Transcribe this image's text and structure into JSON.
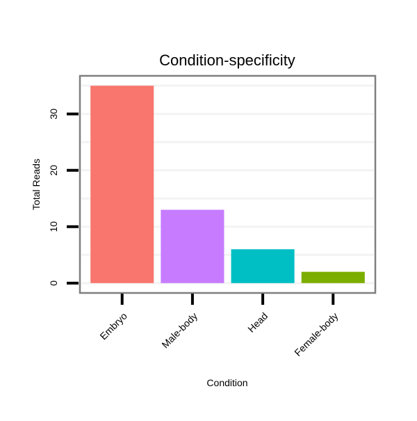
{
  "chart_data": {
    "type": "bar",
    "title": "Condition-specificity",
    "xlabel": "Condition",
    "ylabel": "Total Reads",
    "categories": [
      "Embryo",
      "Male-body",
      "Head",
      "Female-body"
    ],
    "values": [
      35,
      13,
      6,
      2
    ],
    "colors": [
      "#F8766D",
      "#C77CFF",
      "#00BFC4",
      "#7CAE00"
    ],
    "ylim": [
      -1.75,
      36.75
    ],
    "yticks": [
      0,
      10,
      20,
      30
    ],
    "ytick_labels": [
      "0",
      "10",
      "20",
      "30"
    ],
    "minor_grid": [
      5,
      15,
      25,
      35
    ],
    "grid": true,
    "legend": "none"
  }
}
